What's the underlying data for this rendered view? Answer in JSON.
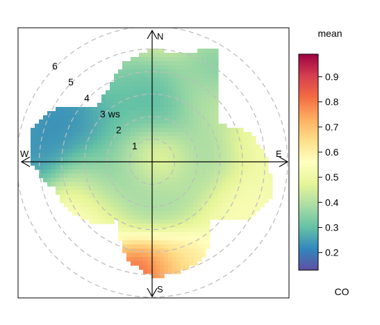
{
  "chart_data": {
    "type": "heatmap",
    "subtype": "polar-plot",
    "title": "",
    "pollutant": "CO",
    "statistic": "mean",
    "radial_variable": "ws",
    "radial_ticks": [
      {
        "value": 1,
        "label": "1"
      },
      {
        "value": 2,
        "label": "2"
      },
      {
        "value": 3,
        "label": "3 ws"
      },
      {
        "value": 4,
        "label": "4"
      },
      {
        "value": 5,
        "label": "5"
      },
      {
        "value": 6,
        "label": "6"
      }
    ],
    "directions": [
      "N",
      "E",
      "S",
      "W"
    ],
    "grid": "dashed concentric circles",
    "colorbar": {
      "title": "mean",
      "label": "CO",
      "range": [
        0.13,
        0.99
      ],
      "ticks": [
        0.2,
        0.3,
        0.4,
        0.5,
        0.6,
        0.7,
        0.8,
        0.9
      ],
      "tick_labels": [
        "0.2",
        "0.3",
        "0.4",
        "0.5",
        "0.6",
        "0.7",
        "0.8",
        "0.9"
      ],
      "palette": [
        "#5E4FA2",
        "#3288BD",
        "#66C2A5",
        "#ABDDA4",
        "#E6F598",
        "#FFFFBF",
        "#FEE08B",
        "#FDAE61",
        "#F46D43",
        "#D53E4F",
        "#9E0142"
      ]
    },
    "coverage_ws_by_direction": [
      {
        "dir": 0,
        "ws": 5.0
      },
      {
        "dir": 15,
        "ws": 4.9
      },
      {
        "dir": 30,
        "ws": 5.8
      },
      {
        "dir": 45,
        "ws": 4.0
      },
      {
        "dir": 60,
        "ws": 3.3
      },
      {
        "dir": 75,
        "ws": 4.6
      },
      {
        "dir": 90,
        "ws": 5.1
      },
      {
        "dir": 105,
        "ws": 5.5
      },
      {
        "dir": 120,
        "ws": 5.0
      },
      {
        "dir": 135,
        "ws": 3.6
      },
      {
        "dir": 150,
        "ws": 4.8
      },
      {
        "dir": 165,
        "ws": 5.0
      },
      {
        "dir": 180,
        "ws": 5.1
      },
      {
        "dir": 195,
        "ws": 4.4
      },
      {
        "dir": 210,
        "ws": 3.0
      },
      {
        "dir": 225,
        "ws": 3.8
      },
      {
        "dir": 240,
        "ws": 4.3
      },
      {
        "dir": 255,
        "ws": 4.5
      },
      {
        "dir": 270,
        "ws": 5.4
      },
      {
        "dir": 285,
        "ws": 5.6
      },
      {
        "dir": 300,
        "ws": 4.8
      },
      {
        "dir": 315,
        "ws": 3.4
      },
      {
        "dir": 330,
        "ws": 3.8
      },
      {
        "dir": 345,
        "ws": 4.6
      }
    ],
    "background_mean": 0.5,
    "features": [
      {
        "dir": 0,
        "ws": 0.3,
        "mean": 0.75
      },
      {
        "dir": 350,
        "ws": 1.5,
        "mean": 0.22
      },
      {
        "dir": 20,
        "ws": 2.5,
        "mean": 0.2
      },
      {
        "dir": 38,
        "ws": 4.5,
        "mean": 0.22
      },
      {
        "dir": 292,
        "ws": 4.8,
        "mean": 0.2
      },
      {
        "dir": 275,
        "ws": 5.3,
        "mean": 0.17
      },
      {
        "dir": 300,
        "ws": 3.0,
        "mean": 0.22
      },
      {
        "dir": 300,
        "ws": 4.2,
        "mean": 0.18
      },
      {
        "dir": 330,
        "ws": 3.0,
        "mean": 0.3
      },
      {
        "dir": 345,
        "ws": 3.0,
        "mean": 0.28
      },
      {
        "dir": 60,
        "ws": 3.0,
        "mean": 0.32
      },
      {
        "dir": 95,
        "ws": 2.0,
        "mean": 0.35
      },
      {
        "dir": 140,
        "ws": 1.5,
        "mean": 0.37
      },
      {
        "dir": 235,
        "ws": 2.2,
        "mean": 0.28
      },
      {
        "dir": 250,
        "ws": 2.0,
        "mean": 0.3
      },
      {
        "dir": 258,
        "ws": 1.3,
        "mean": 0.3
      },
      {
        "dir": 180,
        "ws": 1.5,
        "mean": 0.33
      },
      {
        "dir": 232,
        "ws": 3.0,
        "mean": 0.7
      },
      {
        "dir": 185,
        "ws": 5.1,
        "mean": 0.95
      },
      {
        "dir": 165,
        "ws": 4.8,
        "mean": 0.65
      },
      {
        "dir": 120,
        "ws": 4.2,
        "mean": 0.55
      },
      {
        "dir": 70,
        "ws": 4.5,
        "mean": 0.55
      },
      {
        "dir": 40,
        "ws": 3.5,
        "mean": 0.55
      }
    ]
  }
}
